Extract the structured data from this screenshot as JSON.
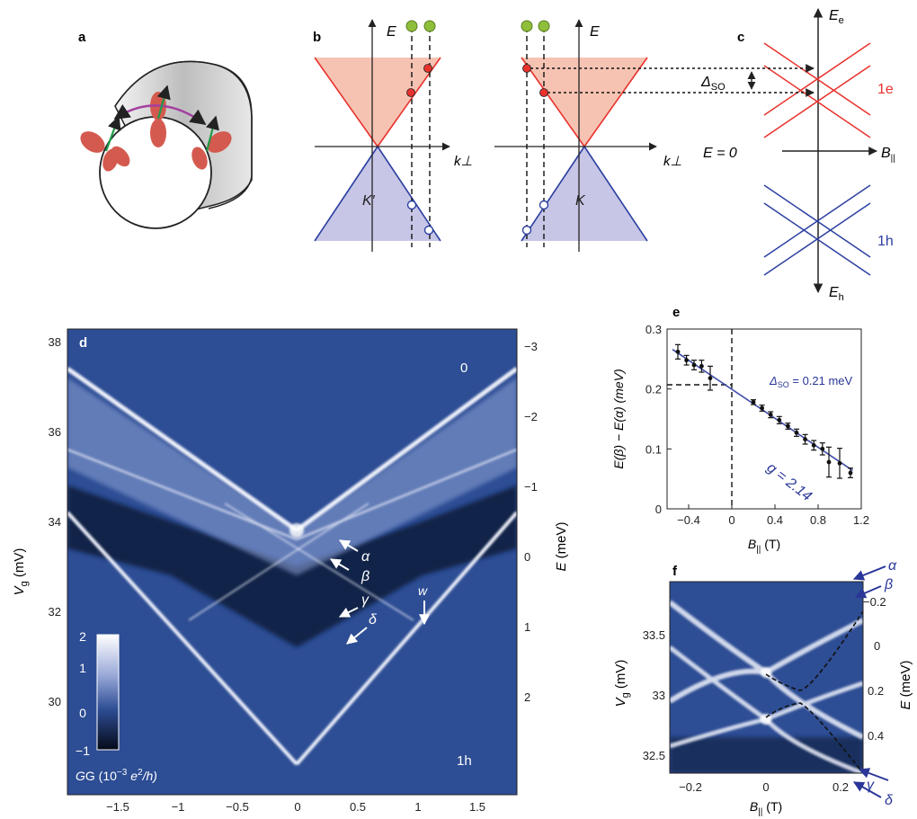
{
  "panel_labels": {
    "a": "a",
    "b": "b",
    "c": "c",
    "d": "d",
    "e": "e",
    "f": "f"
  },
  "colors": {
    "electron": "#e8322d",
    "electron_fill": "#f6c3b3",
    "hole": "#2b3fa0",
    "hole_fill": "#c7c6e6",
    "dataset_dark": "#0c1a3a",
    "dataset_mid": "#2d4d94",
    "dataset_bright": "#eef1fb",
    "fit_line": "#3b4aa8",
    "annot": "#2a3798"
  },
  "panel_b": {
    "energy_axis": "E",
    "momentum_axis": "k⊥",
    "valley_left": "K′",
    "valley_right": "K"
  },
  "panel_c": {
    "top_axis": "E",
    "top_axis_sub": "e",
    "bottom_axis": "E",
    "bottom_axis_sub": "h",
    "zero_label": "E = 0",
    "field_axis": "B",
    "field_sub": "||",
    "delta_label": "Δ",
    "delta_sub": "SO",
    "electron_label": "1e",
    "hole_label": "1h"
  },
  "panel_d": {
    "ylabel": "V",
    "ylabel_sub": "g",
    "ylabel_unit": " (mV)",
    "xlabel": "B",
    "xlabel_sub": "||",
    "xlabel_unit": " (T)",
    "y2label": "E",
    "y2label_unit": " (meV)",
    "yticks": [
      "38",
      "36",
      "34",
      "32",
      "30"
    ],
    "xticks": [
      "−1.5",
      "−1",
      "−0.5",
      "0",
      "0.5",
      "1",
      "1.5"
    ],
    "y2ticks": [
      "−3",
      "−2",
      "−1",
      "0",
      "1",
      "2"
    ],
    "label_zero": "0",
    "label_1h": "1h",
    "arrows": [
      "α",
      "β",
      "γ",
      "δ",
      "w"
    ],
    "colorbar_ticks": [
      "2",
      "1",
      "0",
      "−1"
    ],
    "colorbar_label": "G (10",
    "colorbar_exp": "−3",
    "colorbar_unit_tail": " e",
    "colorbar_unit_exp": "2",
    "colorbar_unit_end": "/h)"
  },
  "panel_f": {
    "ylabel": "V",
    "ylabel_sub": "g",
    "ylabel_unit": " (mV)",
    "xlabel": "B",
    "xlabel_sub": "||",
    "xlabel_unit": " (T)",
    "y2label": "E",
    "y2label_unit": " (meV)",
    "yticks": [
      "33.5",
      "33",
      "32.5"
    ],
    "xticks": [
      "−0.2",
      "0",
      "0.2"
    ],
    "y2ticks": [
      "−0.2",
      "0",
      "0.2",
      "0.4"
    ],
    "arrows": [
      "α",
      "β",
      "γ",
      "δ"
    ]
  },
  "chart_data": {
    "type": "scatter",
    "title": "",
    "xlabel": "B|| (T)",
    "ylabel": "E(β) − E(α) (meV)",
    "xlim": [
      -0.6,
      1.2
    ],
    "ylim": [
      0,
      0.3
    ],
    "xticks": [
      "−0.4",
      "0",
      "0.4",
      "0.8",
      "1.2"
    ],
    "yticks": [
      "0",
      "0.1",
      "0.2",
      "0.3"
    ],
    "series": [
      {
        "x": [
          -0.5,
          -0.42,
          -0.35,
          -0.28,
          -0.2,
          0.2,
          0.28,
          0.36,
          0.44,
          0.52,
          0.6,
          0.68,
          0.76,
          0.84,
          0.9,
          1.0,
          1.1
        ],
        "y": [
          0.262,
          0.248,
          0.24,
          0.238,
          0.218,
          0.178,
          0.168,
          0.157,
          0.148,
          0.138,
          0.127,
          0.116,
          0.106,
          0.1,
          0.078,
          0.076,
          0.06
        ],
        "err": [
          0.012,
          0.008,
          0.008,
          0.01,
          0.02,
          0.004,
          0.005,
          0.005,
          0.006,
          0.005,
          0.006,
          0.008,
          0.008,
          0.01,
          0.025,
          0.025,
          0.008
        ]
      }
    ],
    "fit": {
      "x": [
        -0.55,
        1.12
      ],
      "y": [
        0.266,
        0.064
      ]
    },
    "annotations": {
      "delta": "Δ",
      "delta_sub": "SO",
      "delta_value": " = 0.21 meV",
      "g_text": "g = 2.14",
      "delta_line_y": 0.207
    }
  }
}
